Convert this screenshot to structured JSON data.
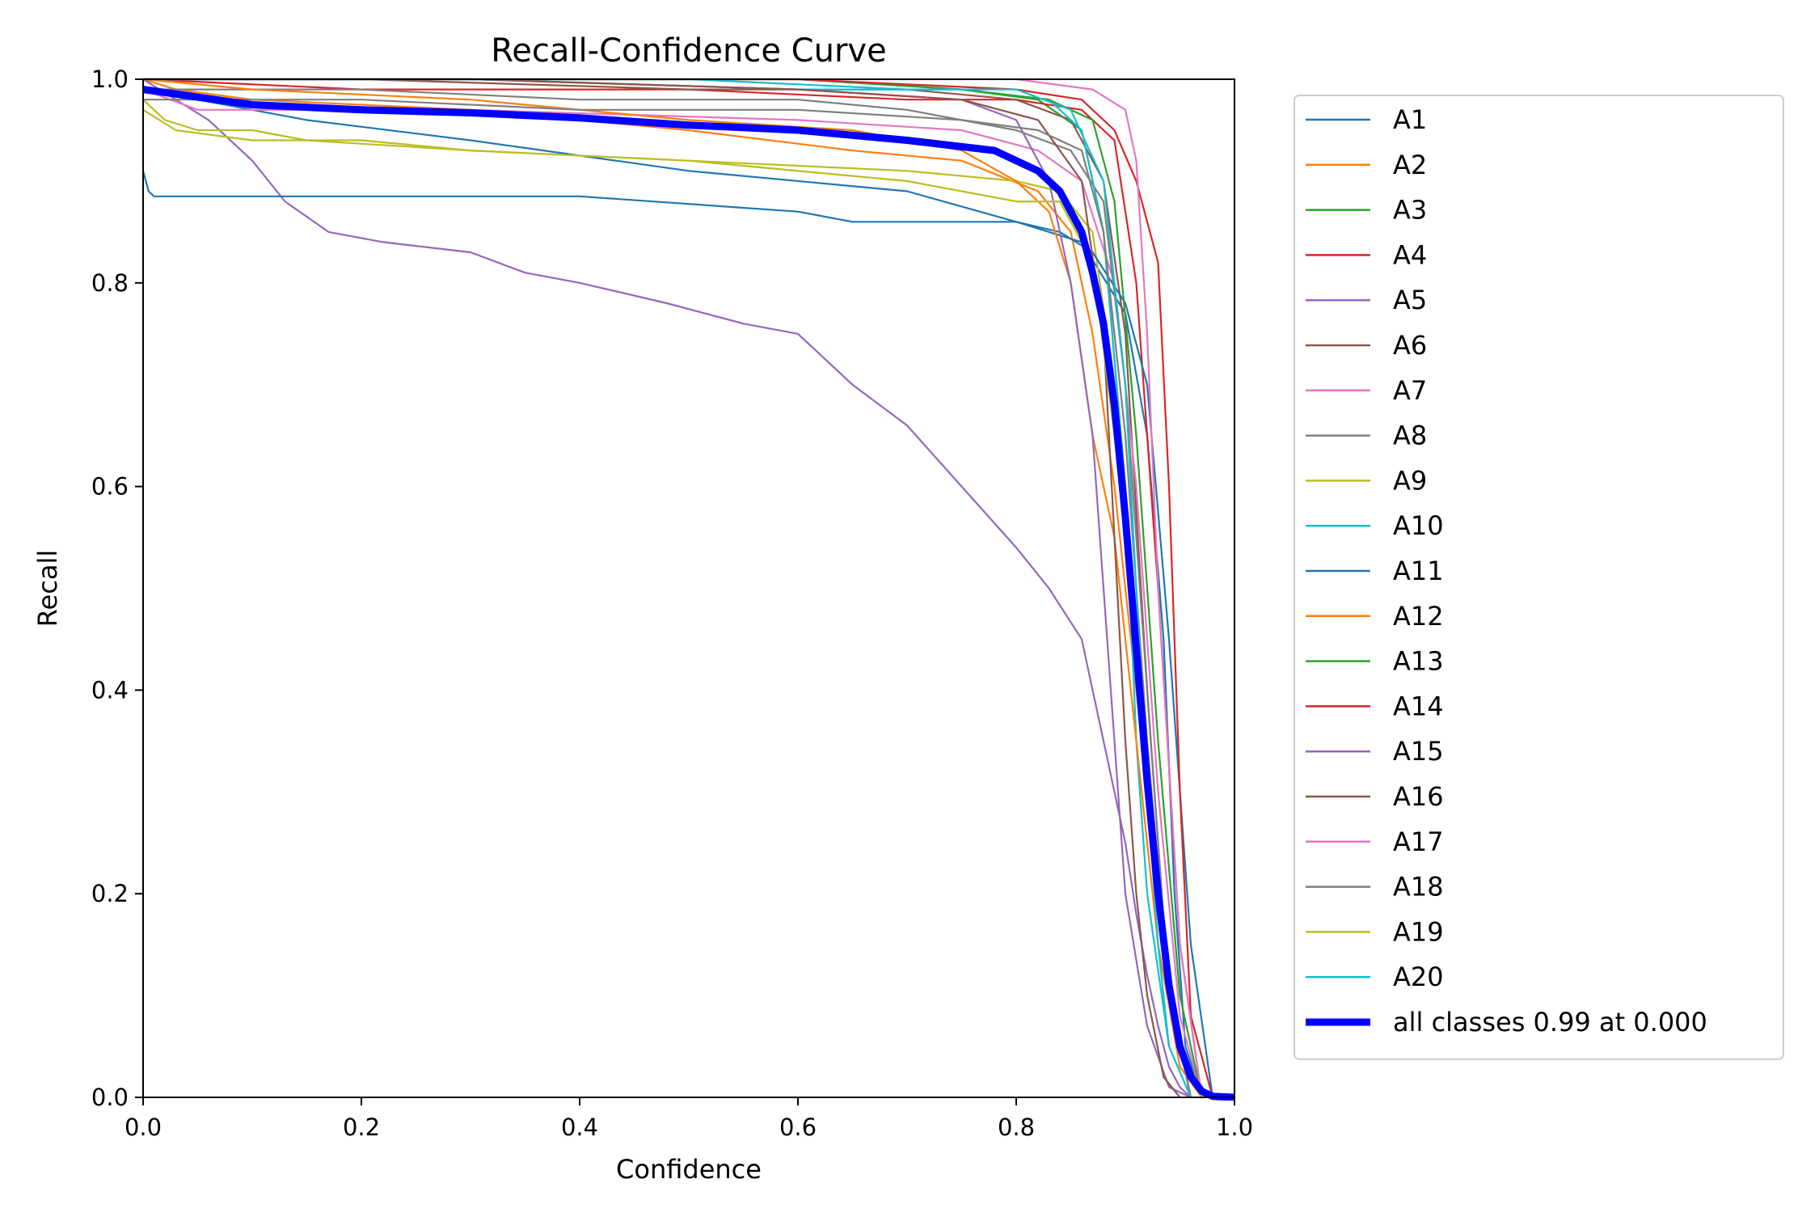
{
  "chart_data": {
    "type": "line",
    "title": "Recall-Confidence Curve",
    "xlabel": "Confidence",
    "ylabel": "Recall",
    "xlim": [
      0,
      1
    ],
    "ylim": [
      0,
      1
    ],
    "x_ticks": [
      "0.0",
      "0.2",
      "0.4",
      "0.6",
      "0.8",
      "1.0"
    ],
    "y_ticks": [
      "0.0",
      "0.2",
      "0.4",
      "0.6",
      "0.8",
      "1.0"
    ],
    "grid": false,
    "legend_position": "outside-right",
    "series": [
      {
        "name": "A1",
        "color": "#1f77b4",
        "x": [
          0,
          0.05,
          0.15,
          0.3,
          0.5,
          0.7,
          0.8,
          0.86,
          0.9,
          0.92,
          0.935,
          0.945,
          0.955,
          0.97
        ],
        "y": [
          0.99,
          0.98,
          0.96,
          0.94,
          0.91,
          0.89,
          0.86,
          0.84,
          0.77,
          0.65,
          0.45,
          0.2,
          0.05,
          0
        ]
      },
      {
        "name": "A2",
        "color": "#ff7f0e",
        "x": [
          0,
          0.03,
          0.1,
          0.3,
          0.5,
          0.65,
          0.75,
          0.82,
          0.85,
          0.87,
          0.89,
          0.91,
          0.93,
          0.95,
          0.97
        ],
        "y": [
          1.0,
          0.99,
          0.98,
          0.97,
          0.95,
          0.93,
          0.92,
          0.89,
          0.85,
          0.75,
          0.6,
          0.4,
          0.2,
          0.05,
          0
        ]
      },
      {
        "name": "A3",
        "color": "#2ca02c",
        "x": [
          0,
          0.2,
          0.4,
          0.6,
          0.75,
          0.82,
          0.86,
          0.88,
          0.9,
          0.92,
          0.94,
          0.96
        ],
        "y": [
          1.0,
          1.0,
          1.0,
          1.0,
          0.99,
          0.98,
          0.95,
          0.85,
          0.6,
          0.3,
          0.1,
          0
        ]
      },
      {
        "name": "A4",
        "color": "#d62728",
        "x": [
          0,
          0.2,
          0.5,
          0.7,
          0.8,
          0.86,
          0.89,
          0.91,
          0.93,
          0.95,
          0.97
        ],
        "y": [
          1.0,
          0.99,
          0.99,
          0.98,
          0.98,
          0.97,
          0.94,
          0.8,
          0.5,
          0.15,
          0
        ]
      },
      {
        "name": "A5",
        "color": "#9467bd",
        "x": [
          0,
          0.03,
          0.06,
          0.1,
          0.13,
          0.17,
          0.22,
          0.3,
          0.35,
          0.4,
          0.48,
          0.55,
          0.6,
          0.65,
          0.7,
          0.75,
          0.8,
          0.83,
          0.86,
          0.87,
          0.88,
          0.9,
          0.91,
          0.92,
          0.93,
          0.94,
          0.95,
          0.96
        ],
        "y": [
          1.0,
          0.98,
          0.96,
          0.92,
          0.88,
          0.85,
          0.84,
          0.83,
          0.81,
          0.8,
          0.78,
          0.76,
          0.75,
          0.7,
          0.66,
          0.6,
          0.54,
          0.5,
          0.45,
          0.4,
          0.35,
          0.25,
          0.18,
          0.12,
          0.07,
          0.03,
          0.01,
          0
        ]
      },
      {
        "name": "A6",
        "color": "#8c564b",
        "x": [
          0,
          0.2,
          0.5,
          0.7,
          0.8,
          0.85,
          0.88,
          0.9,
          0.92,
          0.94,
          0.96
        ],
        "y": [
          1.0,
          1.0,
          0.99,
          0.99,
          0.98,
          0.96,
          0.9,
          0.75,
          0.4,
          0.1,
          0
        ]
      },
      {
        "name": "A7",
        "color": "#e377c2",
        "x": [
          0,
          0.05,
          0.3,
          0.6,
          0.75,
          0.82,
          0.86,
          0.89,
          0.91,
          0.93,
          0.95,
          0.97
        ],
        "y": [
          0.99,
          0.97,
          0.97,
          0.96,
          0.95,
          0.93,
          0.9,
          0.8,
          0.6,
          0.3,
          0.08,
          0
        ]
      },
      {
        "name": "A8",
        "color": "#7f7f7f",
        "x": [
          0,
          0.2,
          0.4,
          0.6,
          0.7,
          0.8,
          0.85,
          0.88,
          0.9,
          0.92,
          0.94,
          0.96
        ],
        "y": [
          0.99,
          0.99,
          0.98,
          0.98,
          0.97,
          0.95,
          0.93,
          0.88,
          0.7,
          0.4,
          0.1,
          0
        ]
      },
      {
        "name": "A9",
        "color": "#bcbd22",
        "x": [
          0,
          0.02,
          0.05,
          0.1,
          0.15,
          0.3,
          0.5,
          0.7,
          0.8,
          0.84,
          0.87,
          0.89,
          0.91,
          0.93,
          0.95,
          0.97
        ],
        "y": [
          0.98,
          0.96,
          0.95,
          0.95,
          0.94,
          0.93,
          0.92,
          0.91,
          0.9,
          0.89,
          0.85,
          0.7,
          0.45,
          0.2,
          0.05,
          0
        ]
      },
      {
        "name": "A10",
        "color": "#17becf",
        "x": [
          0,
          0.3,
          0.6,
          0.75,
          0.83,
          0.86,
          0.88,
          0.9,
          0.91,
          0.92,
          0.94,
          0.96
        ],
        "y": [
          1.0,
          1.0,
          0.99,
          0.99,
          0.98,
          0.95,
          0.85,
          0.6,
          0.35,
          0.2,
          0.05,
          0
        ]
      },
      {
        "name": "A11",
        "color": "#1f77b4",
        "x": [
          0,
          0.005,
          0.01,
          0.1,
          0.2,
          0.4,
          0.6,
          0.65,
          0.75,
          0.8,
          0.84,
          0.87,
          0.9,
          0.92,
          0.94,
          0.96,
          0.98
        ],
        "y": [
          0.91,
          0.89,
          0.885,
          0.885,
          0.885,
          0.885,
          0.87,
          0.86,
          0.86,
          0.86,
          0.85,
          0.83,
          0.78,
          0.7,
          0.45,
          0.15,
          0
        ]
      },
      {
        "name": "A12",
        "color": "#ff7f0e",
        "x": [
          0,
          0.1,
          0.3,
          0.5,
          0.65,
          0.75,
          0.8,
          0.83,
          0.85,
          0.87,
          0.89,
          0.91,
          0.93,
          0.95,
          0.97
        ],
        "y": [
          1.0,
          0.99,
          0.98,
          0.96,
          0.95,
          0.93,
          0.9,
          0.87,
          0.8,
          0.65,
          0.55,
          0.35,
          0.15,
          0.03,
          0
        ]
      },
      {
        "name": "A13",
        "color": "#2ca02c",
        "x": [
          0,
          0.3,
          0.6,
          0.75,
          0.83,
          0.87,
          0.89,
          0.91,
          0.93,
          0.95,
          0.97
        ],
        "y": [
          1.0,
          1.0,
          1.0,
          0.99,
          0.98,
          0.96,
          0.88,
          0.65,
          0.35,
          0.1,
          0
        ]
      },
      {
        "name": "A14",
        "color": "#d62728",
        "x": [
          0,
          0.3,
          0.6,
          0.8,
          0.86,
          0.89,
          0.91,
          0.93,
          0.94,
          0.95,
          0.96,
          0.98
        ],
        "y": [
          1.0,
          1.0,
          1.0,
          0.99,
          0.98,
          0.95,
          0.9,
          0.82,
          0.6,
          0.3,
          0.08,
          0
        ]
      },
      {
        "name": "A15",
        "color": "#9467bd",
        "x": [
          0,
          0.3,
          0.6,
          0.75,
          0.8,
          0.83,
          0.85,
          0.87,
          0.88,
          0.89,
          0.9,
          0.92,
          0.94,
          0.96
        ],
        "y": [
          1.0,
          1.0,
          0.99,
          0.98,
          0.96,
          0.9,
          0.8,
          0.65,
          0.5,
          0.35,
          0.2,
          0.07,
          0.01,
          0
        ]
      },
      {
        "name": "A16",
        "color": "#8c564b",
        "x": [
          0,
          0.3,
          0.6,
          0.75,
          0.82,
          0.86,
          0.88,
          0.89,
          0.9,
          0.91,
          0.92,
          0.935,
          0.95
        ],
        "y": [
          1.0,
          1.0,
          0.99,
          0.98,
          0.96,
          0.9,
          0.75,
          0.55,
          0.35,
          0.2,
          0.1,
          0.02,
          0
        ]
      },
      {
        "name": "A17",
        "color": "#e377c2",
        "x": [
          0,
          0.3,
          0.6,
          0.8,
          0.87,
          0.9,
          0.91,
          0.92,
          0.93,
          0.95,
          0.97
        ],
        "y": [
          1.0,
          1.0,
          1.0,
          1.0,
          0.99,
          0.97,
          0.92,
          0.75,
          0.5,
          0.15,
          0
        ]
      },
      {
        "name": "A18",
        "color": "#7f7f7f",
        "x": [
          0,
          0.2,
          0.4,
          0.6,
          0.75,
          0.82,
          0.86,
          0.88,
          0.9,
          0.92,
          0.94,
          0.96
        ],
        "y": [
          0.98,
          0.98,
          0.97,
          0.97,
          0.96,
          0.95,
          0.93,
          0.85,
          0.65,
          0.35,
          0.1,
          0
        ]
      },
      {
        "name": "A19",
        "color": "#bcbd22",
        "x": [
          0,
          0.03,
          0.1,
          0.2,
          0.3,
          0.5,
          0.7,
          0.8,
          0.84,
          0.87,
          0.89,
          0.91,
          0.93,
          0.95,
          0.97
        ],
        "y": [
          0.97,
          0.95,
          0.94,
          0.94,
          0.93,
          0.92,
          0.9,
          0.88,
          0.88,
          0.82,
          0.65,
          0.45,
          0.2,
          0.05,
          0
        ]
      },
      {
        "name": "A20",
        "color": "#17becf",
        "x": [
          0,
          0.3,
          0.5,
          0.7,
          0.8,
          0.85,
          0.88,
          0.9,
          0.91,
          0.92,
          0.93,
          0.94,
          0.96
        ],
        "y": [
          1.0,
          1.0,
          1.0,
          0.99,
          0.99,
          0.97,
          0.9,
          0.7,
          0.5,
          0.3,
          0.15,
          0.05,
          0
        ]
      },
      {
        "name": "all classes 0.99 at 0.000",
        "color": "#0000ff",
        "bold": true,
        "x": [
          0,
          0.1,
          0.2,
          0.3,
          0.4,
          0.5,
          0.6,
          0.7,
          0.78,
          0.82,
          0.84,
          0.86,
          0.87,
          0.88,
          0.89,
          0.9,
          0.91,
          0.92,
          0.93,
          0.94,
          0.95,
          0.96,
          0.97,
          0.98,
          1.0
        ],
        "y": [
          0.99,
          0.975,
          0.97,
          0.967,
          0.962,
          0.955,
          0.95,
          0.94,
          0.93,
          0.91,
          0.89,
          0.85,
          0.81,
          0.76,
          0.68,
          0.57,
          0.44,
          0.31,
          0.2,
          0.11,
          0.05,
          0.02,
          0.006,
          0.001,
          0
        ]
      }
    ]
  }
}
